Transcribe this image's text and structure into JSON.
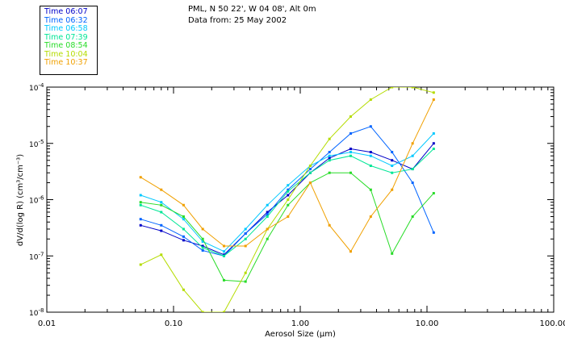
{
  "header": {
    "location": "PML, N 50 22', W 04 08', Alt 0m",
    "date_line": "Data from: 25 May 2002"
  },
  "chart_data": {
    "type": "line",
    "title": "PML, N 50 22', W 04 08', Alt 0m",
    "xlabel": "Aerosol Size (µm)",
    "ylabel": "dV/d(log R) (cm³/cm⁻³)",
    "xscale": "log",
    "yscale": "log",
    "xlim": [
      0.01,
      100
    ],
    "ylim": [
      1e-08,
      0.0001
    ],
    "x_ticks": [
      {
        "value": 0.01,
        "label": "0.01"
      },
      {
        "value": 0.1,
        "label": "0.10"
      },
      {
        "value": 1,
        "label": "1.00"
      },
      {
        "value": 10,
        "label": "10.00"
      },
      {
        "value": 100,
        "label": "100.00"
      }
    ],
    "y_ticks": [
      {
        "value": 1e-08,
        "mant": "10",
        "exp": "-8"
      },
      {
        "value": 1e-07,
        "mant": "10",
        "exp": "-7"
      },
      {
        "value": 1e-06,
        "mant": "10",
        "exp": "-6"
      },
      {
        "value": 1e-05,
        "mant": "10",
        "exp": "-5"
      },
      {
        "value": 0.0001,
        "mant": "10",
        "exp": "-4"
      }
    ],
    "x": [
      0.055,
      0.08,
      0.12,
      0.17,
      0.25,
      0.37,
      0.55,
      0.8,
      1.2,
      1.7,
      2.5,
      3.6,
      5.3,
      7.7,
      11.3
    ],
    "legend_placement": "top-left",
    "series": [
      {
        "name": "Time 06:07",
        "color": "#0000c8",
        "values": [
          3.5e-07,
          2.8e-07,
          1.9e-07,
          1.5e-07,
          1.05e-07,
          2.5e-07,
          6e-07,
          1.2e-06,
          3e-06,
          5.5e-06,
          8e-06,
          7e-06,
          5e-06,
          3.5e-06,
          1e-05
        ]
      },
      {
        "name": "Time 06:32",
        "color": "#0064ff",
        "values": [
          4.5e-07,
          3.5e-07,
          2.2e-07,
          1.25e-07,
          1e-07,
          2.5e-07,
          5.5e-07,
          1.5e-06,
          3.5e-06,
          7e-06,
          1.5e-05,
          2e-05,
          7e-06,
          2e-06,
          2.6e-07
        ]
      },
      {
        "name": "Time 06:58",
        "color": "#00c8ff",
        "values": [
          1.2e-06,
          9e-07,
          4.5e-07,
          1.8e-07,
          1.2e-07,
          3e-07,
          8e-07,
          1.8e-06,
          4e-06,
          6e-06,
          7e-06,
          6e-06,
          4e-06,
          6e-06,
          1.5e-05
        ]
      },
      {
        "name": "Time 07:39",
        "color": "#00e696",
        "values": [
          8e-07,
          6e-07,
          3e-07,
          1.4e-07,
          1e-07,
          2e-07,
          5e-07,
          1.4e-06,
          3e-06,
          5e-06,
          6e-06,
          4e-06,
          3e-06,
          3.5e-06,
          8e-06
        ]
      },
      {
        "name": "Time 08:54",
        "color": "#28dc28",
        "values": [
          9e-07,
          8e-07,
          5e-07,
          2e-07,
          3.7e-08,
          3.5e-08,
          2e-07,
          8e-07,
          2e-06,
          3e-06,
          3e-06,
          1.5e-06,
          1.1e-07,
          5e-07,
          1.3e-06
        ]
      },
      {
        "name": "Time 10:04",
        "color": "#b4dc00",
        "values": [
          7e-08,
          1.05e-07,
          2.5e-08,
          1e-08,
          1e-08,
          5e-08,
          3e-07,
          1e-06,
          4e-06,
          1.2e-05,
          3e-05,
          6e-05,
          0.0001,
          0.0001,
          8e-05
        ]
      },
      {
        "name": "Time 10:37",
        "color": "#f0a000",
        "values": [
          2.5e-06,
          1.5e-06,
          8e-07,
          3e-07,
          1.5e-07,
          1.5e-07,
          3e-07,
          5e-07,
          2e-06,
          3.5e-07,
          1.2e-07,
          5e-07,
          1.5e-06,
          1e-05,
          6e-05
        ]
      }
    ]
  }
}
